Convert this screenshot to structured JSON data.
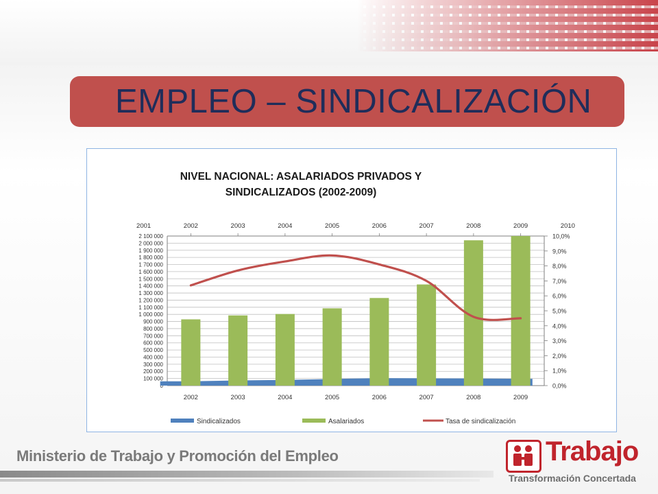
{
  "slide": {
    "title": "EMPLEO – SINDICALIZACIÓN",
    "footer_ministry": "Ministerio de Trabajo y Promoción del Empleo",
    "logo_brand": "Trabajo",
    "logo_tagline": "Transformación Concertada"
  },
  "colors": {
    "title_bar": "#c0504d",
    "title_text": "#1f2d5a",
    "sindicalizados": "#4f81bd",
    "asalariados": "#9bbb59",
    "tasa": "#c0504d",
    "brand_red": "#c0242c"
  },
  "chart_data": {
    "type": "bar",
    "title_line1": "NIVEL NACIONAL: ASALARIADOS PRIVADOS Y",
    "title_line2": "SINDICALIZADOS (2002-2009)",
    "categories": [
      "2002",
      "2003",
      "2004",
      "2005",
      "2006",
      "2007",
      "2008",
      "2009"
    ],
    "secondary_x_ticks": [
      "2001",
      "2002",
      "2003",
      "2004",
      "2005",
      "2006",
      "2007",
      "2008",
      "2009",
      "2010"
    ],
    "y_ticks": [
      "0",
      "100 000",
      "200 000",
      "300 000",
      "400 000",
      "500 000",
      "600 000",
      "700 000",
      "800 000",
      "900 000",
      "1 000 000",
      "1 100 000",
      "1 200 000",
      "1 300 000",
      "1 400 000",
      "1 500 000",
      "1 600 000",
      "1 700 000",
      "1 800 000",
      "1 900 000",
      "2 000 000",
      "2 100 000"
    ],
    "y2_ticks": [
      "0,0%",
      "1,0%",
      "2,0%",
      "3,0%",
      "4,0%",
      "5,0%",
      "6,0%",
      "7,0%",
      "8,0%",
      "9,0%",
      "10,0%"
    ],
    "ylim": [
      0,
      2100000
    ],
    "y2lim": [
      0,
      10
    ],
    "series": [
      {
        "name": "Sindicalizados",
        "kind": "area",
        "values": [
          60000,
          72000,
          80000,
          93000,
          105000,
          102000,
          100000,
          95000
        ]
      },
      {
        "name": "Asalariados",
        "kind": "bar",
        "values": [
          930000,
          985000,
          1005000,
          1085000,
          1230000,
          1420000,
          2040000,
          2110000
        ]
      },
      {
        "name": "Tasa de sindicalización",
        "kind": "line",
        "axis": "secondary",
        "x": [
          2002,
          2003,
          2004,
          2005,
          2006,
          2007,
          2008,
          2009
        ],
        "values": [
          6.7,
          7.7,
          8.3,
          8.7,
          8.1,
          7.0,
          4.6,
          4.5
        ]
      }
    ],
    "legend_position": "bottom",
    "grid": true
  }
}
